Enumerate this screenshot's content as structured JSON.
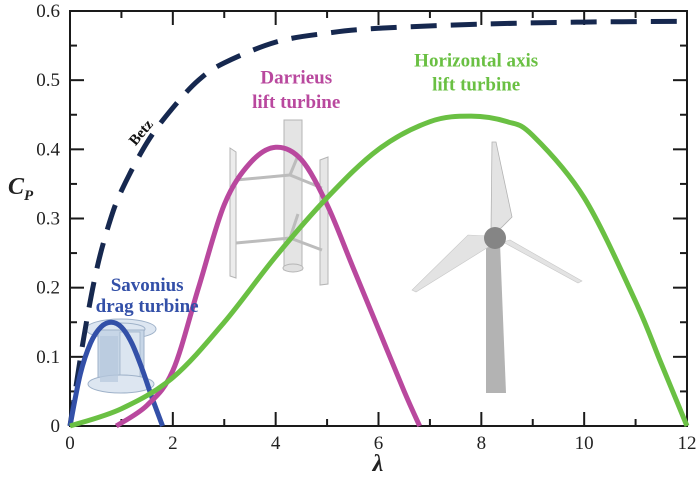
{
  "chart_data": {
    "type": "line",
    "title": "",
    "xlabel": "λ",
    "ylabel": "C_P",
    "ylabel_main": "C",
    "ylabel_sub": "P",
    "xlim": [
      0,
      12
    ],
    "ylim": [
      0,
      0.6
    ],
    "x_ticks": [
      0,
      2,
      4,
      6,
      8,
      10,
      12
    ],
    "x_tick_labels": [
      "0",
      "2",
      "4",
      "6",
      "8",
      "10",
      "12"
    ],
    "y_ticks": [
      0,
      0.1,
      0.2,
      0.3,
      0.4,
      0.5,
      0.6
    ],
    "y_tick_labels": [
      "0",
      "0.1",
      "0.2",
      "0.3",
      "0.4",
      "0.5",
      "0.6"
    ],
    "grid": false,
    "legend": "none (inline annotations)",
    "series": [
      {
        "name": "Betz",
        "color": "#16284f",
        "style": "dashed",
        "x": [
          0,
          0.25,
          0.5,
          0.75,
          1.0,
          1.5,
          2.0,
          2.5,
          3.0,
          4.0,
          5.0,
          6.0,
          8.0,
          10.0,
          12.0
        ],
        "y": [
          0,
          0.12,
          0.22,
          0.29,
          0.34,
          0.41,
          0.46,
          0.5,
          0.525,
          0.555,
          0.568,
          0.575,
          0.581,
          0.584,
          0.585
        ]
      },
      {
        "name": "Savonius drag turbine",
        "color": "#3350a8",
        "style": "solid",
        "x": [
          0,
          0.2,
          0.4,
          0.6,
          0.8,
          1.0,
          1.2,
          1.4,
          1.6,
          1.8
        ],
        "y": [
          0,
          0.075,
          0.12,
          0.143,
          0.15,
          0.143,
          0.12,
          0.083,
          0.04,
          0
        ]
      },
      {
        "name": "Darrieus lift turbine",
        "color": "#b9489e",
        "style": "solid",
        "x": [
          0.9,
          1.5,
          2.0,
          2.5,
          3.0,
          3.5,
          4.0,
          4.5,
          5.0,
          5.5,
          6.0,
          6.5,
          6.8
        ],
        "y": [
          0,
          0.03,
          0.08,
          0.2,
          0.32,
          0.38,
          0.403,
          0.385,
          0.32,
          0.23,
          0.14,
          0.05,
          0
        ]
      },
      {
        "name": "Horizontal axis lift turbine",
        "color": "#6ac043",
        "style": "solid",
        "x": [
          0,
          1,
          2,
          3,
          4,
          5,
          6,
          7,
          7.8,
          8.5,
          9,
          10,
          11,
          11.5,
          12
        ],
        "y": [
          0,
          0.025,
          0.07,
          0.15,
          0.245,
          0.33,
          0.4,
          0.44,
          0.448,
          0.44,
          0.42,
          0.33,
          0.18,
          0.09,
          0
        ]
      }
    ],
    "annotations": [
      {
        "text": "Betz",
        "x": 1.45,
        "y": 0.42,
        "color": "#111111",
        "rotation": -50
      },
      {
        "text": "Savonius",
        "x": 1.5,
        "y": 0.195,
        "color": "#3350a8"
      },
      {
        "text": "drag turbine",
        "x": 1.5,
        "y": 0.165,
        "color": "#3350a8"
      },
      {
        "text": "Darrieus",
        "x": 4.4,
        "y": 0.495,
        "color": "#b9489e"
      },
      {
        "text": "lift turbine",
        "x": 4.4,
        "y": 0.46,
        "color": "#b9489e"
      },
      {
        "text": "Horizontal axis",
        "x": 7.9,
        "y": 0.52,
        "color": "#6ac043"
      },
      {
        "text": "lift turbine",
        "x": 7.9,
        "y": 0.485,
        "color": "#6ac043"
      }
    ],
    "illustrations": [
      "savonius-turbine-drawing",
      "darrieus-turbine-drawing",
      "horizontal-axis-wind-turbine-drawing"
    ]
  }
}
